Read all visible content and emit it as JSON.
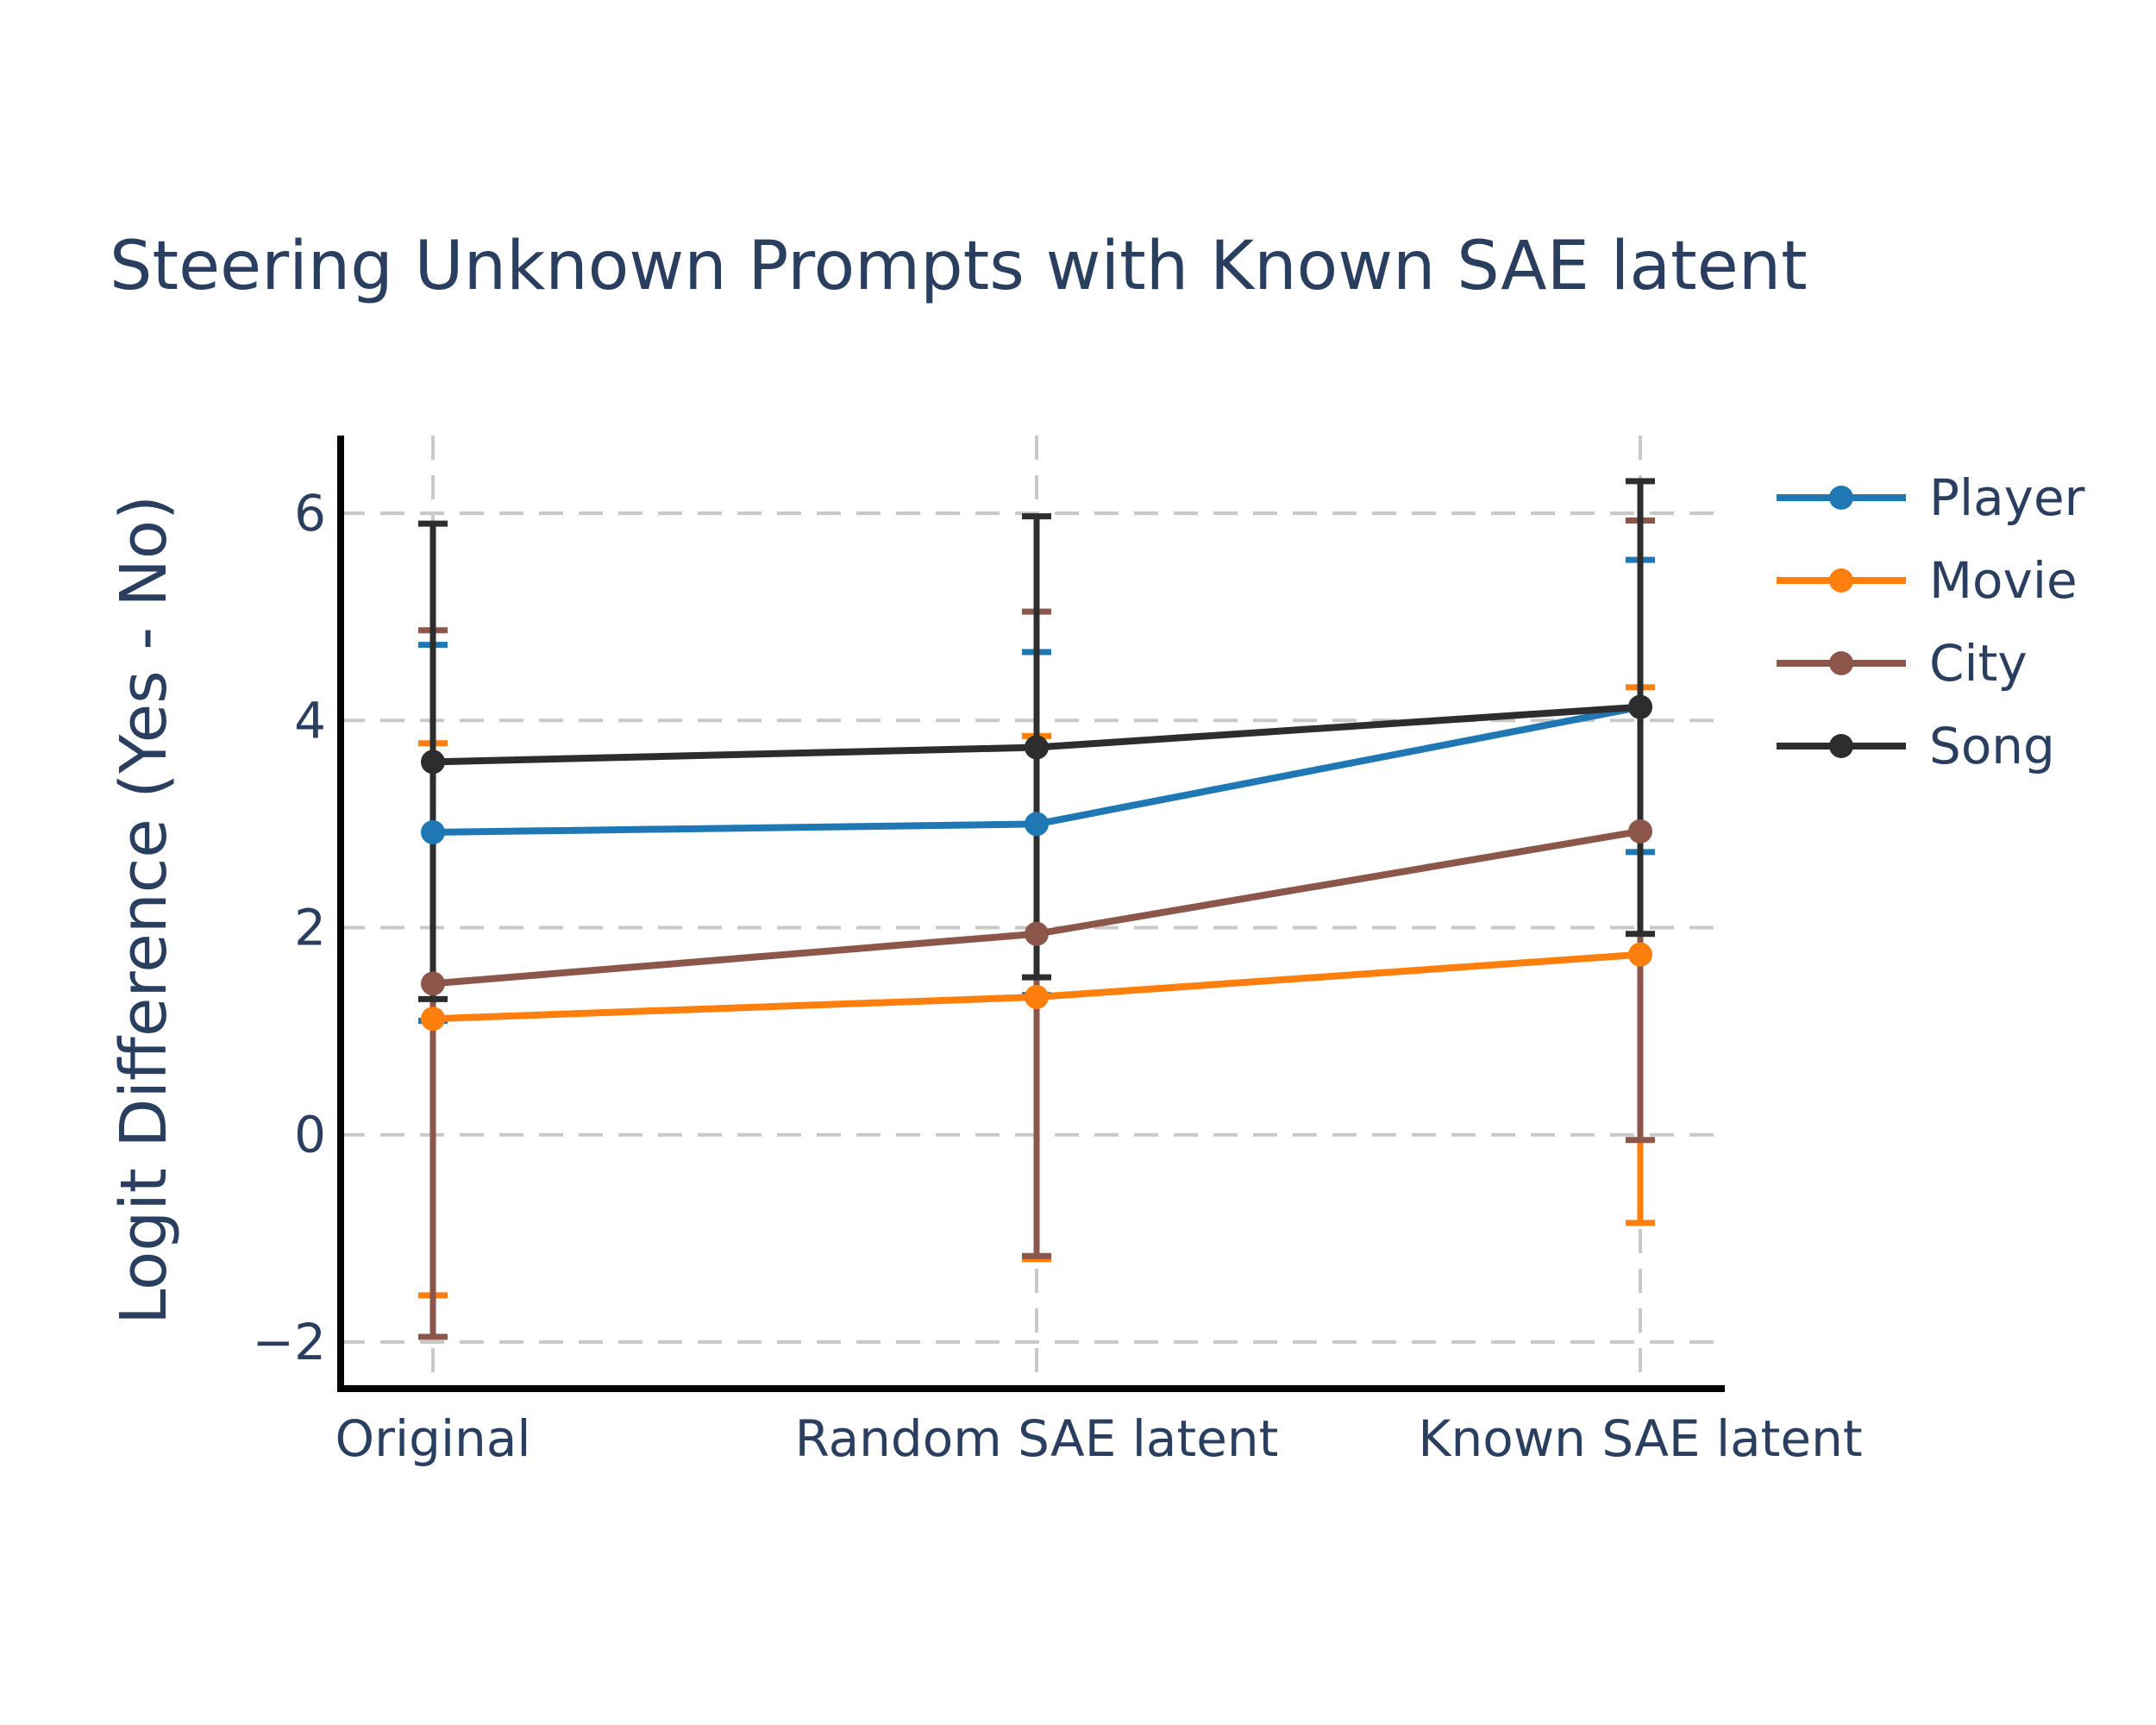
{
  "chart_data": {
    "type": "line",
    "title": "Steering Unknown Prompts with Known SAE latent",
    "xlabel": "",
    "ylabel": "Logit Difference (Yes - No)",
    "categories": [
      "Original",
      "Random SAE latent",
      "Known SAE latent"
    ],
    "ylim": [
      -2.45,
      6.75
    ],
    "yticks": [
      -2,
      0,
      2,
      4,
      6
    ],
    "ytick_labels": [
      "−2",
      "0",
      "2",
      "4",
      "6"
    ],
    "grid": true,
    "legend_position": "right",
    "series": [
      {
        "name": "Player",
        "color": "#1f77b4",
        "values": [
          2.92,
          3.0,
          4.13
        ],
        "err_low": [
          1.1,
          1.35,
          2.73
        ],
        "err_high": [
          4.73,
          4.66,
          5.55
        ]
      },
      {
        "name": "Movie",
        "color": "#ff7f0e",
        "values": [
          1.12,
          1.33,
          1.74
        ],
        "err_low": [
          -1.55,
          -1.2,
          -0.85
        ],
        "err_high": [
          3.78,
          3.85,
          4.32
        ]
      },
      {
        "name": "City",
        "color": "#8c564b",
        "values": [
          1.46,
          1.94,
          2.93
        ],
        "err_low": [
          -1.95,
          -1.17,
          -0.05
        ],
        "err_high": [
          4.87,
          5.05,
          5.93
        ]
      },
      {
        "name": "Song",
        "color": "#2d2d2d",
        "values": [
          3.6,
          3.74,
          4.13
        ],
        "err_low": [
          1.31,
          1.52,
          1.94
        ],
        "err_high": [
          5.9,
          5.97,
          6.31
        ]
      }
    ]
  }
}
